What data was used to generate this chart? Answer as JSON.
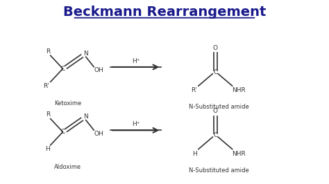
{
  "title": "Beckmann Rearrangement",
  "title_color": "#1a1a8c",
  "title_fontsize": 14,
  "bg_color": "#ffffff",
  "line_color": "#333333",
  "text_color": "#333333",
  "reaction1_label_left": "Ketoxime",
  "reaction1_label_right": "N-Substituted amide",
  "reaction2_label_left": "Aldoxime",
  "reaction2_label_right": "N-Substituted amide",
  "arrow_label": "H⁺",
  "xlim": [
    0,
    10
  ],
  "ylim": [
    0,
    5.5
  ]
}
